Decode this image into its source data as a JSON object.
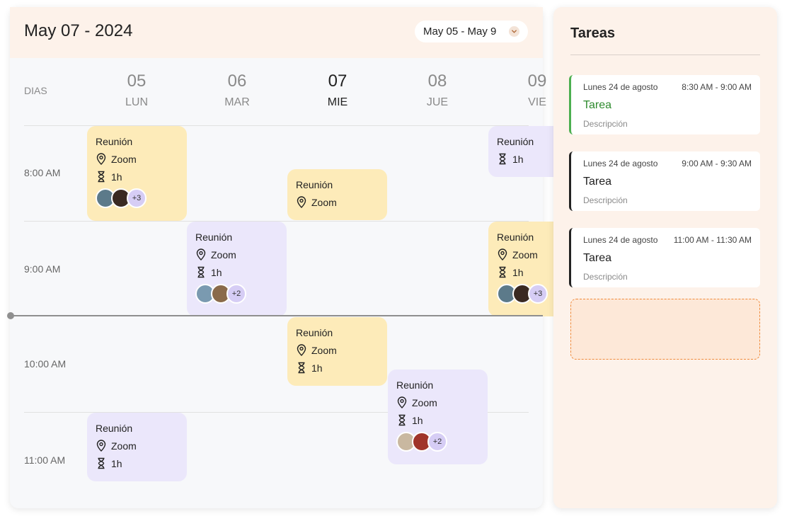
{
  "header": {
    "title": "May 07 - 2024",
    "range_label": "May 05 - May 9",
    "days_label": "DIAS"
  },
  "days": [
    {
      "num": "05",
      "weekday": "LUN",
      "active": false
    },
    {
      "num": "06",
      "weekday": "MAR",
      "active": false
    },
    {
      "num": "07",
      "weekday": "MIE",
      "active": true
    },
    {
      "num": "08",
      "weekday": "JUE",
      "active": false
    },
    {
      "num": "09",
      "weekday": "VIE",
      "active": false
    }
  ],
  "times": [
    "8:00 AM",
    "9:00 AM",
    "10:00 AM",
    "11:00 AM"
  ],
  "events": [
    {
      "title": "Reunión",
      "location": "Zoom",
      "duration": "1h",
      "more": "+3",
      "color": "#fdebb9"
    },
    {
      "title": "Reunión",
      "location": "Zoom",
      "color": "#fdebb9"
    },
    {
      "title": "Reunión",
      "duration": "1h",
      "color": "#ebe7fb"
    },
    {
      "title": "Reunión",
      "location": "Zoom",
      "duration": "1h",
      "more": "+2",
      "color": "#ebe7fb"
    },
    {
      "title": "Reunión",
      "location": "Zoom",
      "duration": "1h",
      "more": "+3",
      "color": "#fdebb9"
    },
    {
      "title": "Reunión",
      "location": "Zoom",
      "duration": "1h",
      "color": "#fdebb9"
    },
    {
      "title": "Reunión",
      "location": "Zoom",
      "duration": "1h",
      "more": "+2",
      "color": "#ebe7fb"
    },
    {
      "title": "Reunión",
      "location": "Zoom",
      "duration": "1h",
      "color": "#ebe7fb"
    }
  ],
  "tasks": {
    "title": "Tareas",
    "items": [
      {
        "date": "Lunes 24 de agosto",
        "time": "8:30 AM - 9:00 AM",
        "name": "Tarea",
        "desc": "Descripción",
        "accent": "#4caf50"
      },
      {
        "date": "Lunes 24 de agosto",
        "time": "9:00 AM - 9:30 AM",
        "name": "Tarea",
        "desc": "Descripción",
        "accent": "#222222"
      },
      {
        "date": "Lunes 24 de agosto",
        "time": "11:00 AM - 11:30 AM",
        "name": "Tarea",
        "desc": "Descripción",
        "accent": "#222222"
      }
    ]
  },
  "icons": {
    "location": "location-pin-icon",
    "duration": "hourglass-icon",
    "chevron": "chevron-down-icon"
  }
}
